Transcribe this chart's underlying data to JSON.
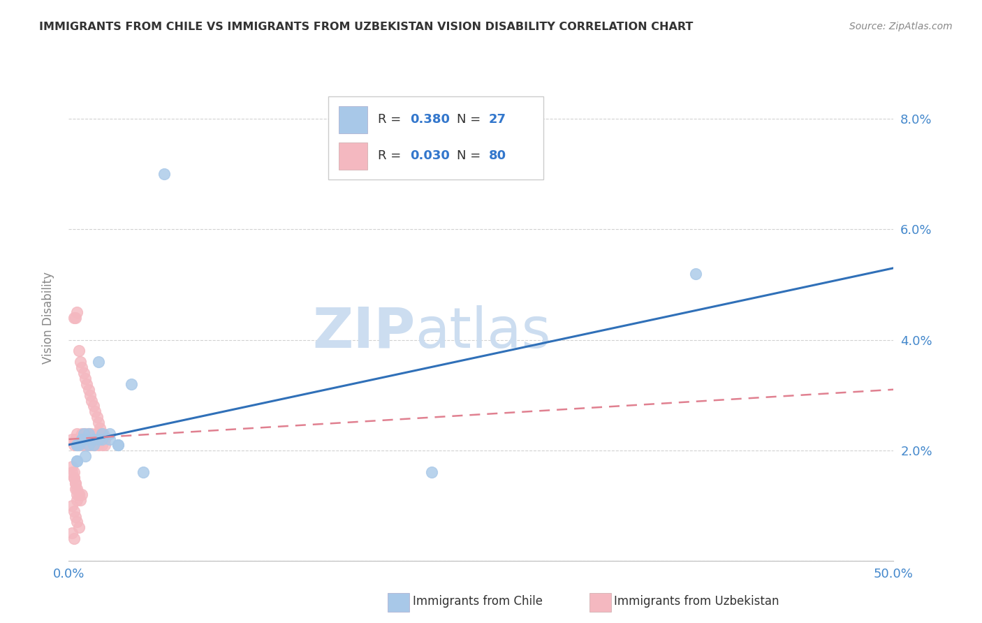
{
  "title": "IMMIGRANTS FROM CHILE VS IMMIGRANTS FROM UZBEKISTAN VISION DISABILITY CORRELATION CHART",
  "source": "Source: ZipAtlas.com",
  "ylabel": "Vision Disability",
  "x_min": 0.0,
  "x_max": 0.5,
  "y_min": 0.0,
  "y_max": 0.088,
  "chile_color": "#a8c8e8",
  "uzbek_color": "#f4b8c0",
  "chile_line_color": "#3070b8",
  "uzbek_line_color": "#e08090",
  "watermark_zip": "ZIP",
  "watermark_atlas": "atlas",
  "watermark_color": "#ccddf0",
  "background_color": "#ffffff",
  "grid_color": "#cccccc",
  "axis_label_color": "#4488cc",
  "title_color": "#333333",
  "source_color": "#888888",
  "legend_label_color": "#222222",
  "legend_value_color": "#3377cc",
  "chile_scatter_x": [
    0.018,
    0.038,
    0.058,
    0.005,
    0.01,
    0.015,
    0.02,
    0.025,
    0.005,
    0.008,
    0.01,
    0.012,
    0.015,
    0.006,
    0.009,
    0.012,
    0.018,
    0.02,
    0.025,
    0.03,
    0.005,
    0.008,
    0.03,
    0.045,
    0.005,
    0.38,
    0.22
  ],
  "chile_scatter_y": [
    0.036,
    0.032,
    0.07,
    0.021,
    0.022,
    0.021,
    0.022,
    0.023,
    0.018,
    0.022,
    0.019,
    0.023,
    0.022,
    0.021,
    0.023,
    0.021,
    0.022,
    0.023,
    0.022,
    0.021,
    0.021,
    0.022,
    0.021,
    0.016,
    0.018,
    0.052,
    0.016
  ],
  "uzbek_scatter_x": [
    0.002,
    0.003,
    0.004,
    0.005,
    0.005,
    0.006,
    0.006,
    0.007,
    0.007,
    0.008,
    0.008,
    0.009,
    0.009,
    0.01,
    0.01,
    0.011,
    0.011,
    0.012,
    0.012,
    0.013,
    0.013,
    0.014,
    0.014,
    0.015,
    0.015,
    0.016,
    0.016,
    0.017,
    0.017,
    0.018,
    0.018,
    0.019,
    0.019,
    0.02,
    0.02,
    0.021,
    0.021,
    0.022,
    0.022,
    0.003,
    0.004,
    0.005,
    0.006,
    0.007,
    0.008,
    0.009,
    0.01,
    0.011,
    0.012,
    0.013,
    0.014,
    0.015,
    0.016,
    0.017,
    0.018,
    0.019,
    0.02,
    0.021,
    0.003,
    0.004,
    0.005,
    0.006,
    0.007,
    0.008,
    0.002,
    0.003,
    0.004,
    0.005,
    0.006,
    0.002,
    0.003,
    0.003,
    0.004,
    0.004,
    0.005,
    0.005,
    0.006,
    0.002,
    0.002,
    0.003
  ],
  "uzbek_scatter_y": [
    0.022,
    0.021,
    0.022,
    0.021,
    0.023,
    0.021,
    0.022,
    0.022,
    0.021,
    0.022,
    0.023,
    0.021,
    0.022,
    0.021,
    0.023,
    0.022,
    0.021,
    0.022,
    0.023,
    0.022,
    0.021,
    0.022,
    0.023,
    0.021,
    0.022,
    0.022,
    0.021,
    0.022,
    0.023,
    0.022,
    0.021,
    0.022,
    0.023,
    0.022,
    0.021,
    0.022,
    0.023,
    0.022,
    0.021,
    0.044,
    0.044,
    0.045,
    0.038,
    0.036,
    0.035,
    0.034,
    0.033,
    0.032,
    0.031,
    0.03,
    0.029,
    0.028,
    0.027,
    0.026,
    0.025,
    0.024,
    0.023,
    0.022,
    0.015,
    0.014,
    0.013,
    0.012,
    0.011,
    0.012,
    0.01,
    0.009,
    0.008,
    0.007,
    0.006,
    0.005,
    0.004,
    0.015,
    0.014,
    0.013,
    0.012,
    0.011,
    0.012,
    0.016,
    0.017,
    0.016
  ],
  "chile_trend_x": [
    0.0,
    0.5
  ],
  "chile_trend_y": [
    0.021,
    0.053
  ],
  "uzbek_trend_x": [
    0.0,
    0.5
  ],
  "uzbek_trend_y": [
    0.022,
    0.031
  ]
}
